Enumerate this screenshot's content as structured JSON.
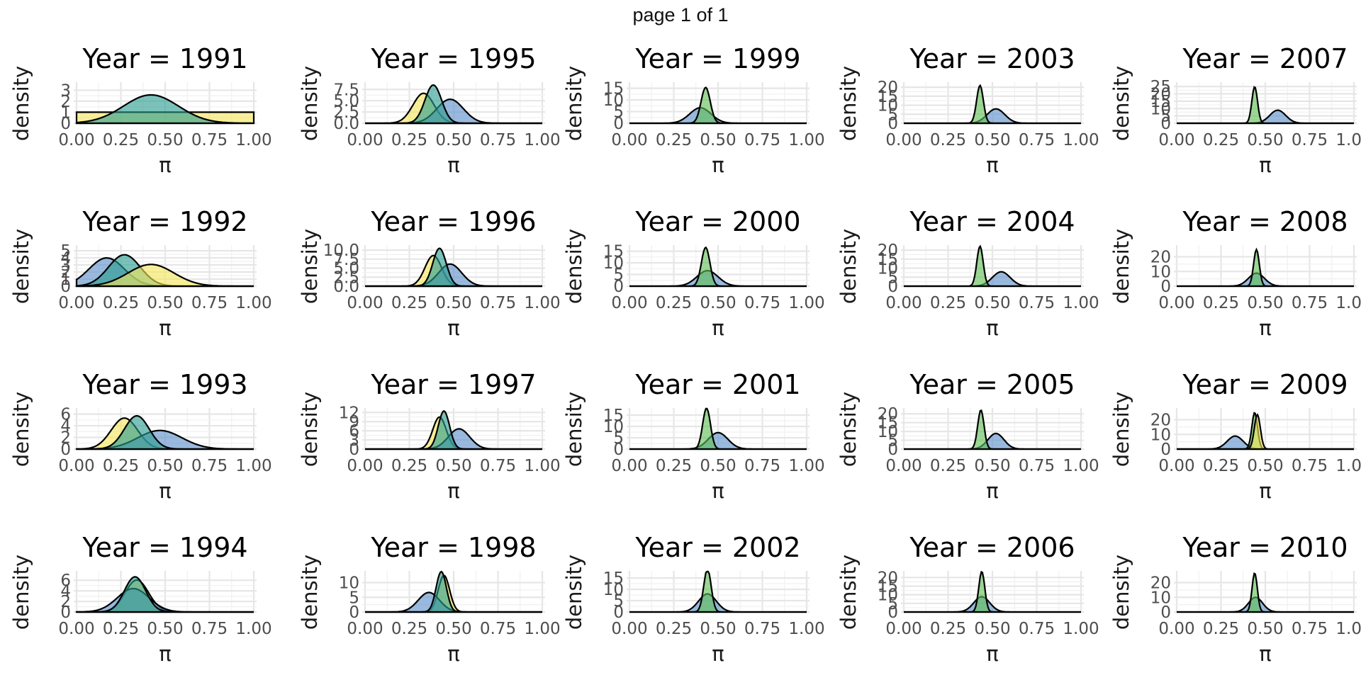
{
  "page_label": "page 1 of 1",
  "colors": {
    "prior": "#f3e55a",
    "posterior": "#2a9d8f",
    "likelihood": "#5b8fc9",
    "extra": "#5fbf55",
    "grid": "#e6e6e6",
    "outline": "#000000"
  },
  "chart_data": {
    "type": "area",
    "layout": "faceted, 5 columns x 4 rows, column-major",
    "x_label": "π",
    "y_label": "density",
    "x_ticks": [
      "0.00",
      "0.25",
      "0.50",
      "0.75",
      "1.00"
    ],
    "xlim": [
      0,
      1
    ],
    "grid": true,
    "legend": "none",
    "panels": [
      {
        "title": "Year = 1991",
        "y_ticks": [
          "0",
          "1",
          "2",
          "3"
        ],
        "ylim": [
          0,
          3.6
        ],
        "curves": [
          {
            "color": "prior",
            "kind": "flat",
            "value": 1.0
          },
          {
            "color": "posterior",
            "kind": "normal",
            "mean": 0.42,
            "sd": 0.155
          }
        ]
      },
      {
        "title": "Year = 1992",
        "y_ticks": [
          "0",
          "1",
          "2",
          "3",
          "4",
          "5"
        ],
        "ylim": [
          0,
          5.6
        ],
        "curves": [
          {
            "color": "likelihood",
            "kind": "normal",
            "mean": 0.17,
            "sd": 0.1
          },
          {
            "color": "posterior",
            "kind": "normal",
            "mean": 0.27,
            "sd": 0.09
          },
          {
            "color": "prior",
            "kind": "normal",
            "mean": 0.42,
            "sd": 0.13
          }
        ]
      },
      {
        "title": "Year = 1993",
        "y_ticks": [
          "0",
          "2",
          "4",
          "6"
        ],
        "ylim": [
          0,
          6.8
        ],
        "curves": [
          {
            "color": "prior",
            "kind": "normal",
            "mean": 0.27,
            "sd": 0.075
          },
          {
            "color": "likelihood",
            "kind": "normal",
            "mean": 0.47,
            "sd": 0.125
          },
          {
            "color": "posterior",
            "kind": "normal",
            "mean": 0.34,
            "sd": 0.07
          }
        ]
      },
      {
        "title": "Year = 1994",
        "y_ticks": [
          "0",
          "2",
          "4",
          "6"
        ],
        "ylim": [
          0,
          7.5
        ],
        "curves": [
          {
            "color": "prior",
            "kind": "normal",
            "mean": 0.34,
            "sd": 0.066
          },
          {
            "color": "likelihood",
            "kind": "normal",
            "mean": 0.32,
            "sd": 0.09
          },
          {
            "color": "posterior",
            "kind": "normal",
            "mean": 0.33,
            "sd": 0.06
          }
        ]
      },
      {
        "title": "Year = 1995",
        "y_ticks": [
          "0.0",
          "2.5",
          "5.0",
          "7.5"
        ],
        "ylim": [
          0,
          8.8
        ],
        "curves": [
          {
            "color": "prior",
            "kind": "normal",
            "mean": 0.33,
            "sd": 0.06
          },
          {
            "color": "likelihood",
            "kind": "normal",
            "mean": 0.48,
            "sd": 0.075
          },
          {
            "color": "posterior",
            "kind": "normal",
            "mean": 0.385,
            "sd": 0.047
          }
        ]
      },
      {
        "title": "Year = 1996",
        "y_ticks": [
          "0.0",
          "2.5",
          "5.0",
          "7.5",
          "10.0"
        ],
        "ylim": [
          0,
          11
        ],
        "curves": [
          {
            "color": "prior",
            "kind": "normal",
            "mean": 0.385,
            "sd": 0.047
          },
          {
            "color": "likelihood",
            "kind": "normal",
            "mean": 0.48,
            "sd": 0.065
          },
          {
            "color": "posterior",
            "kind": "normal",
            "mean": 0.42,
            "sd": 0.038
          }
        ]
      },
      {
        "title": "Year = 1997",
        "y_ticks": [
          "0",
          "3",
          "6",
          "9",
          "12"
        ],
        "ylim": [
          0,
          13
        ],
        "curves": [
          {
            "color": "prior",
            "kind": "normal",
            "mean": 0.42,
            "sd": 0.038
          },
          {
            "color": "likelihood",
            "kind": "normal",
            "mean": 0.53,
            "sd": 0.06
          },
          {
            "color": "posterior",
            "kind": "normal",
            "mean": 0.445,
            "sd": 0.032
          }
        ]
      },
      {
        "title": "Year = 1998",
        "y_ticks": [
          "0",
          "5",
          "10"
        ],
        "ylim": [
          0,
          13.5
        ],
        "curves": [
          {
            "color": "prior",
            "kind": "normal",
            "mean": 0.445,
            "sd": 0.032
          },
          {
            "color": "likelihood",
            "kind": "normal",
            "mean": 0.36,
            "sd": 0.06
          },
          {
            "color": "posterior",
            "kind": "normal",
            "mean": 0.43,
            "sd": 0.029
          }
        ]
      },
      {
        "title": "Year = 1999",
        "y_ticks": [
          "0",
          "5",
          "10",
          "15"
        ],
        "ylim": [
          0,
          17
        ],
        "curves": [
          {
            "color": "likelihood",
            "kind": "normal",
            "mean": 0.4,
            "sd": 0.06
          },
          {
            "color": "extra",
            "kind": "normal",
            "mean": 0.43,
            "sd": 0.026
          }
        ]
      },
      {
        "title": "Year = 2000",
        "y_ticks": [
          "0",
          "5",
          "10",
          "15"
        ],
        "ylim": [
          0,
          17
        ],
        "curves": [
          {
            "color": "likelihood",
            "kind": "normal",
            "mean": 0.44,
            "sd": 0.06
          },
          {
            "color": "extra",
            "kind": "normal",
            "mean": 0.43,
            "sd": 0.024
          }
        ]
      },
      {
        "title": "Year = 2001",
        "y_ticks": [
          "0",
          "5",
          "10",
          "15"
        ],
        "ylim": [
          0,
          17.5
        ],
        "curves": [
          {
            "color": "likelihood",
            "kind": "normal",
            "mean": 0.5,
            "sd": 0.055
          },
          {
            "color": "extra",
            "kind": "normal",
            "mean": 0.435,
            "sd": 0.022
          }
        ]
      },
      {
        "title": "Year = 2002",
        "y_ticks": [
          "0",
          "5",
          "10",
          "15"
        ],
        "ylim": [
          0,
          17.5
        ],
        "curves": [
          {
            "color": "likelihood",
            "kind": "normal",
            "mean": 0.44,
            "sd": 0.05
          },
          {
            "color": "extra",
            "kind": "normal",
            "mean": 0.44,
            "sd": 0.021
          }
        ]
      },
      {
        "title": "Year = 2003",
        "y_ticks": [
          "0",
          "5",
          "10",
          "15",
          "20"
        ],
        "ylim": [
          0,
          22
        ],
        "curves": [
          {
            "color": "likelihood",
            "kind": "normal",
            "mean": 0.52,
            "sd": 0.05
          },
          {
            "color": "extra",
            "kind": "normal",
            "mean": 0.43,
            "sd": 0.019
          }
        ]
      },
      {
        "title": "Year = 2004",
        "y_ticks": [
          "0",
          "5",
          "10",
          "15",
          "20"
        ],
        "ylim": [
          0,
          22
        ],
        "curves": [
          {
            "color": "likelihood",
            "kind": "normal",
            "mean": 0.55,
            "sd": 0.05
          },
          {
            "color": "extra",
            "kind": "normal",
            "mean": 0.43,
            "sd": 0.018
          }
        ]
      },
      {
        "title": "Year = 2005",
        "y_ticks": [
          "0",
          "5",
          "10",
          "15",
          "20"
        ],
        "ylim": [
          0,
          22.5
        ],
        "curves": [
          {
            "color": "likelihood",
            "kind": "normal",
            "mean": 0.52,
            "sd": 0.045
          },
          {
            "color": "extra",
            "kind": "normal",
            "mean": 0.435,
            "sd": 0.018
          }
        ]
      },
      {
        "title": "Year = 2006",
        "y_ticks": [
          "0",
          "5",
          "10",
          "15",
          "20"
        ],
        "ylim": [
          0,
          23
        ],
        "curves": [
          {
            "color": "likelihood",
            "kind": "normal",
            "mean": 0.44,
            "sd": 0.045
          },
          {
            "color": "extra",
            "kind": "normal",
            "mean": 0.44,
            "sd": 0.017
          }
        ]
      },
      {
        "title": "Year = 2007",
        "y_ticks": [
          "0",
          "5",
          "10",
          "15",
          "20",
          "25"
        ],
        "ylim": [
          0,
          27
        ],
        "curves": [
          {
            "color": "likelihood",
            "kind": "normal",
            "mean": 0.57,
            "sd": 0.045
          },
          {
            "color": "extra",
            "kind": "normal",
            "mean": 0.44,
            "sd": 0.016
          }
        ]
      },
      {
        "title": "Year = 2008",
        "y_ticks": [
          "0",
          "10",
          "20"
        ],
        "ylim": [
          0,
          27
        ],
        "curves": [
          {
            "color": "likelihood",
            "kind": "normal",
            "mean": 0.45,
            "sd": 0.045
          },
          {
            "color": "extra",
            "kind": "normal",
            "mean": 0.45,
            "sd": 0.016
          }
        ]
      },
      {
        "title": "Year = 2009",
        "y_ticks": [
          "0",
          "10",
          "20"
        ],
        "ylim": [
          0,
          27
        ],
        "curves": [
          {
            "color": "likelihood",
            "kind": "normal",
            "mean": 0.33,
            "sd": 0.045
          },
          {
            "color": "extra",
            "kind": "normal",
            "mean": 0.44,
            "sd": 0.016
          },
          {
            "color": "prior",
            "kind": "normal",
            "mean": 0.455,
            "sd": 0.017
          }
        ]
      },
      {
        "title": "Year = 2010",
        "y_ticks": [
          "0",
          "10",
          "20"
        ],
        "ylim": [
          0,
          27
        ],
        "curves": [
          {
            "color": "likelihood",
            "kind": "normal",
            "mean": 0.445,
            "sd": 0.04
          },
          {
            "color": "extra",
            "kind": "normal",
            "mean": 0.44,
            "sd": 0.015
          }
        ]
      }
    ]
  }
}
